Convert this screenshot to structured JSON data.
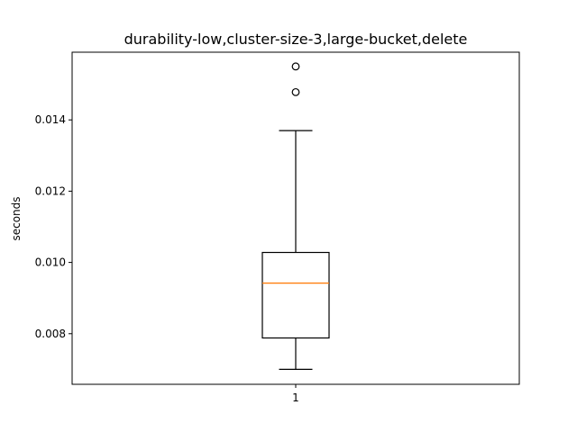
{
  "chart_data": {
    "type": "box",
    "title": "durability-low,cluster-size-3,large-bucket,delete",
    "xlabel": "",
    "ylabel": "seconds",
    "categories": [
      "1"
    ],
    "ylim": [
      0.00658,
      0.0159
    ],
    "yticks": [
      0.008,
      0.01,
      0.012,
      0.014
    ],
    "ytick_labels": [
      "0.008",
      "0.010",
      "0.012",
      "0.014"
    ],
    "grid": false,
    "boxes": [
      {
        "category": "1",
        "whisker_low": 0.007,
        "q1": 0.00788,
        "median": 0.00942,
        "q3": 0.01028,
        "whisker_high": 0.0137,
        "outliers": [
          0.01478,
          0.0155
        ]
      }
    ],
    "colors": {
      "box": "#000000",
      "median": "#ff7f0e"
    }
  }
}
